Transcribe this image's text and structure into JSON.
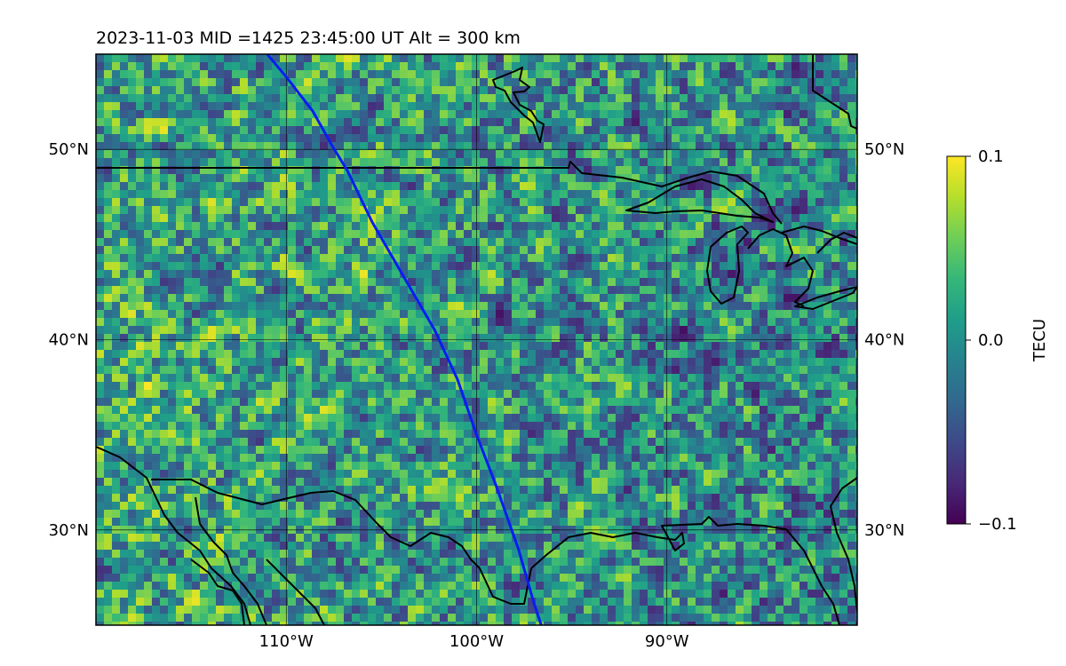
{
  "title": "2023-11-03  MID =1425    23:45:00  UT  Alt = 300 km",
  "map": {
    "lon_range": [
      -120,
      -80
    ],
    "lat_range": [
      25,
      55
    ],
    "lat_ticks": [
      {
        "value": 50,
        "label": "50°N"
      },
      {
        "value": 40,
        "label": "40°N"
      },
      {
        "value": 30,
        "label": "30°N"
      }
    ],
    "lon_ticks": [
      {
        "value": -110,
        "label": "110°W"
      },
      {
        "value": -100,
        "label": "100°W"
      },
      {
        "value": -90,
        "label": "90°W"
      }
    ],
    "gridlines": true,
    "coastlines": true,
    "track_color": "#0a1df2",
    "track_points": [
      [
        -111.0,
        55
      ],
      [
        -110.0,
        53.8
      ],
      [
        -108.6,
        52.0
      ],
      [
        -107.6,
        50.2
      ],
      [
        -106.8,
        48.9
      ],
      [
        -105.5,
        46.2
      ],
      [
        -104.0,
        43.6
      ],
      [
        -102.2,
        40.5
      ],
      [
        -101.0,
        37.9
      ],
      [
        -100.0,
        35.0
      ],
      [
        -99.0,
        32.4
      ],
      [
        -97.8,
        29.0
      ],
      [
        -97.0,
        26.2
      ],
      [
        -96.6,
        25
      ]
    ]
  },
  "colorbar": {
    "label": "TECU",
    "min": -0.1,
    "max": 0.1,
    "ticks": [
      {
        "value": 0.1,
        "label": "0.1"
      },
      {
        "value": 0.0,
        "label": "0.0"
      },
      {
        "value": -0.1,
        "label": "−0.1"
      }
    ],
    "colormap": "viridis",
    "colors": [
      "#440154",
      "#482878",
      "#3e4989",
      "#31688e",
      "#26828e",
      "#1f9e89",
      "#35b779",
      "#6ece58",
      "#b5de2b",
      "#fde725"
    ]
  }
}
